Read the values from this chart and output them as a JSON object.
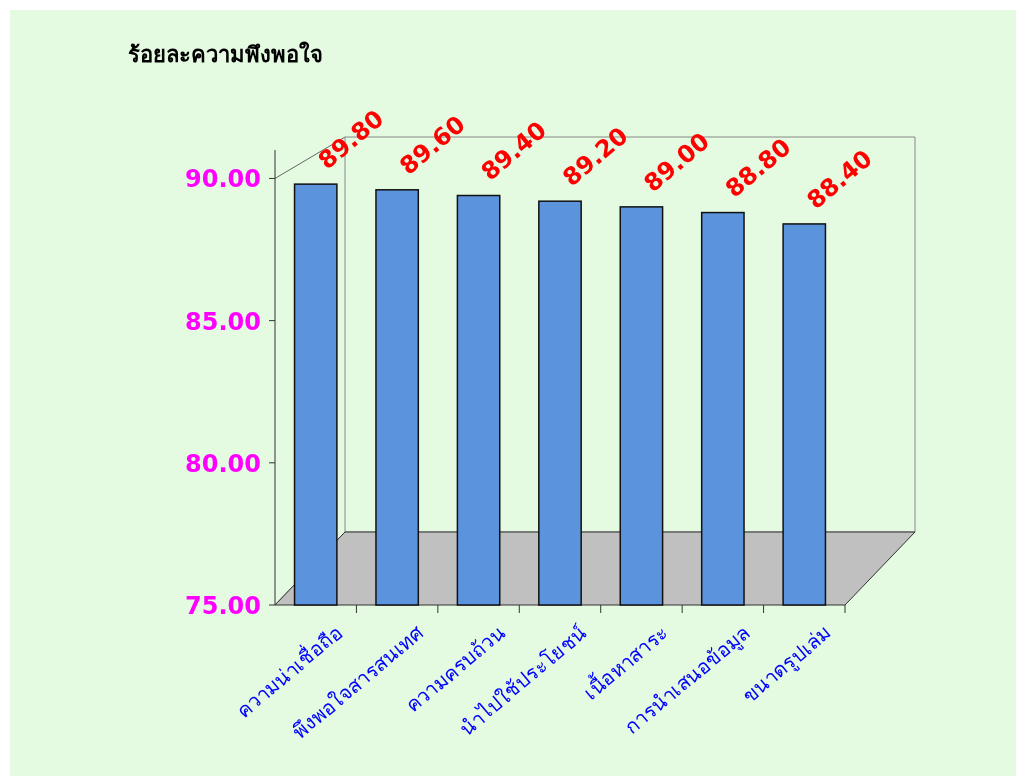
{
  "chart_data": {
    "type": "bar",
    "title": "ร้อยละความพึงพอใจ",
    "categories": [
      "ความน่าเชื่อถือ",
      "พึงพอใจสารสนเทศ",
      "ความครบถ้วน",
      "นำไปใช้ประโยชน์",
      "เนื้อหาสาระ",
      "การนำเสนอข้อมูล",
      "ขนาดรูปเล่ม"
    ],
    "values": [
      89.8,
      89.6,
      89.4,
      89.2,
      89.0,
      88.8,
      88.4
    ],
    "value_labels": [
      "89.80",
      "89.60",
      "89.40",
      "89.20",
      "89.00",
      "88.80",
      "88.40"
    ],
    "color": "#5b93dd",
    "ylim": [
      75,
      91
    ],
    "yticks": [
      {
        "value": 75,
        "label": "75.00"
      },
      {
        "value": 80,
        "label": "80.00"
      },
      {
        "value": 85,
        "label": "85.00"
      },
      {
        "value": 90,
        "label": "90.00"
      }
    ],
    "grid": false
  }
}
